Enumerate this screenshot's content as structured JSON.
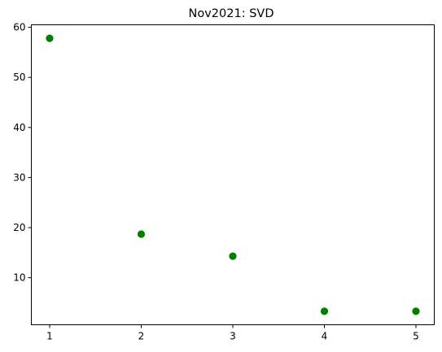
{
  "chart_data": {
    "type": "scatter",
    "title": "Nov2021: SVD",
    "xlabel": "",
    "ylabel": "",
    "x": [
      1,
      2,
      3,
      4,
      5
    ],
    "y": [
      57.8,
      18.7,
      14.3,
      3.3,
      3.3
    ],
    "xlim": [
      0.8,
      5.2
    ],
    "ylim": [
      0.6,
      60.5
    ],
    "xticks": [
      1,
      2,
      3,
      4,
      5
    ],
    "xtick_labels": [
      "1",
      "2",
      "3",
      "4",
      "5"
    ],
    "yticks": [
      10,
      20,
      30,
      40,
      50,
      60
    ],
    "ytick_labels": [
      "10",
      "20",
      "30",
      "40",
      "50",
      "60"
    ],
    "marker_color": "#008000",
    "grid": false,
    "legend": "none"
  }
}
